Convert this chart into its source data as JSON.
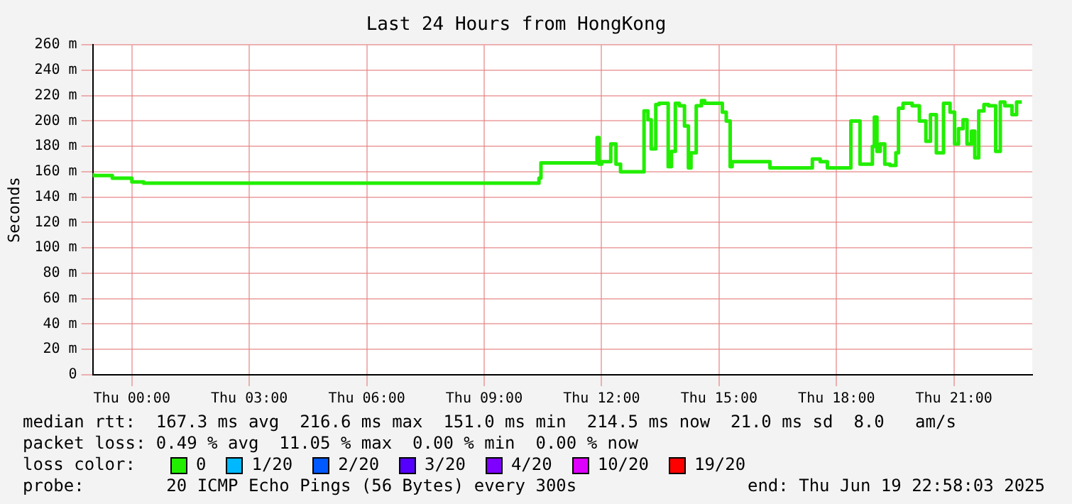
{
  "chart_data": {
    "type": "step",
    "title": "Last 24 Hours from HongKong",
    "ylabel": "Seconds",
    "xlim": [
      "2025-06-18T23:00",
      "2025-06-19T23:00"
    ],
    "xticks": [
      {
        "value": "2025-06-19T00:00",
        "label": "Thu 00:00"
      },
      {
        "value": "2025-06-19T03:00",
        "label": "Thu 03:00"
      },
      {
        "value": "2025-06-19T06:00",
        "label": "Thu 06:00"
      },
      {
        "value": "2025-06-19T09:00",
        "label": "Thu 09:00"
      },
      {
        "value": "2025-06-19T12:00",
        "label": "Thu 12:00"
      },
      {
        "value": "2025-06-19T15:00",
        "label": "Thu 15:00"
      },
      {
        "value": "2025-06-19T18:00",
        "label": "Thu 18:00"
      },
      {
        "value": "2025-06-19T21:00",
        "label": "Thu 21:00"
      }
    ],
    "ylim": [
      0,
      260
    ],
    "yticks": [
      0,
      {
        "value": 20,
        "label": "20 m"
      },
      {
        "value": 40,
        "label": "40 m"
      },
      {
        "value": 60,
        "label": "60 m"
      },
      {
        "value": 80,
        "label": "80 m"
      },
      {
        "value": 100,
        "label": "100 m"
      },
      {
        "value": 120,
        "label": "120 m"
      },
      {
        "value": 140,
        "label": "140 m"
      },
      {
        "value": 160,
        "label": "160 m"
      },
      {
        "value": 180,
        "label": "180 m"
      },
      {
        "value": 200,
        "label": "200 m"
      },
      {
        "value": 220,
        "label": "220 m"
      },
      {
        "value": 240,
        "label": "240 m"
      },
      {
        "value": 260,
        "label": "260 m"
      }
    ],
    "grid": true,
    "legend": false,
    "series": [
      {
        "color": "#22ee00",
        "x": [
          "2025-06-18T23:00",
          "2025-06-18T23:30",
          "2025-06-19T00:00",
          "2025-06-19T00:18",
          "2025-06-19T00:24",
          "2025-06-19T10:24",
          "2025-06-19T10:27",
          "2025-06-19T10:33",
          "2025-06-19T11:53",
          "2025-06-19T11:56",
          "2025-06-19T12:00",
          "2025-06-19T12:14",
          "2025-06-19T12:22",
          "2025-06-19T12:29",
          "2025-06-19T12:33",
          "2025-06-19T13:05",
          "2025-06-19T13:11",
          "2025-06-19T13:16",
          "2025-06-19T13:23",
          "2025-06-19T13:28",
          "2025-06-19T13:42",
          "2025-06-19T13:47",
          "2025-06-19T13:53",
          "2025-06-19T13:59",
          "2025-06-19T14:07",
          "2025-06-19T14:13",
          "2025-06-19T14:17",
          "2025-06-19T14:25",
          "2025-06-19T14:33",
          "2025-06-19T14:38",
          "2025-06-19T15:05",
          "2025-06-19T15:11",
          "2025-06-19T15:17",
          "2025-06-19T15:20",
          "2025-06-19T15:31",
          "2025-06-19T16:18",
          "2025-06-19T16:23",
          "2025-06-19T17:23",
          "2025-06-19T17:35",
          "2025-06-19T17:46",
          "2025-06-19T17:56",
          "2025-06-19T18:22",
          "2025-06-19T18:27",
          "2025-06-19T18:36",
          "2025-06-19T18:38",
          "2025-06-19T18:55",
          "2025-06-19T18:58",
          "2025-06-19T19:02",
          "2025-06-19T19:07",
          "2025-06-19T19:14",
          "2025-06-19T19:22",
          "2025-06-19T19:31",
          "2025-06-19T19:35",
          "2025-06-19T19:42",
          "2025-06-19T19:56",
          "2025-06-19T20:07",
          "2025-06-19T20:17",
          "2025-06-19T20:24",
          "2025-06-19T20:33",
          "2025-06-19T20:44",
          "2025-06-19T20:54",
          "2025-06-19T21:01",
          "2025-06-19T21:07",
          "2025-06-19T21:14",
          "2025-06-19T21:20",
          "2025-06-19T21:27",
          "2025-06-19T21:32",
          "2025-06-19T21:38",
          "2025-06-19T21:46",
          "2025-06-19T21:53",
          "2025-06-19T22:04",
          "2025-06-19T22:11",
          "2025-06-19T22:18",
          "2025-06-19T22:29",
          "2025-06-19T22:36",
          "2025-06-19T22:44"
        ],
        "values": [
          159,
          157,
          155,
          152,
          151,
          151,
          155,
          167,
          167,
          187,
          166,
          168,
          182,
          166,
          160,
          160,
          208,
          201,
          178,
          213,
          214,
          164,
          176,
          214,
          212,
          196,
          163,
          175,
          212,
          216,
          214,
          207,
          200,
          164,
          168,
          168,
          163,
          163,
          170,
          168,
          163,
          163,
          200,
          200,
          166,
          166,
          180,
          203,
          176,
          182,
          166,
          165,
          175,
          210,
          214,
          212,
          200,
          184,
          205,
          175,
          214,
          207,
          182,
          194,
          201,
          182,
          192,
          171,
          208,
          213,
          212,
          176,
          215,
          212,
          205,
          215
        ]
      }
    ],
    "annotations": [
      "median rtt:  167.3 ms avg  216.6 ms max  151.0 ms min  214.5 ms now  21.0 ms sd  8.0   am/s",
      "packet loss: 0.49 % avg  11.05 % max  0.00 % min  0.00 % now",
      "loss color:",
      "0",
      "1/20",
      "2/20",
      "3/20",
      "4/20",
      "10/20",
      "19/20",
      "probe:        20 ICMP Echo Pings (56 Bytes) every 300s",
      "end: Thu Jun 19 22:58:03 2025"
    ]
  }
}
